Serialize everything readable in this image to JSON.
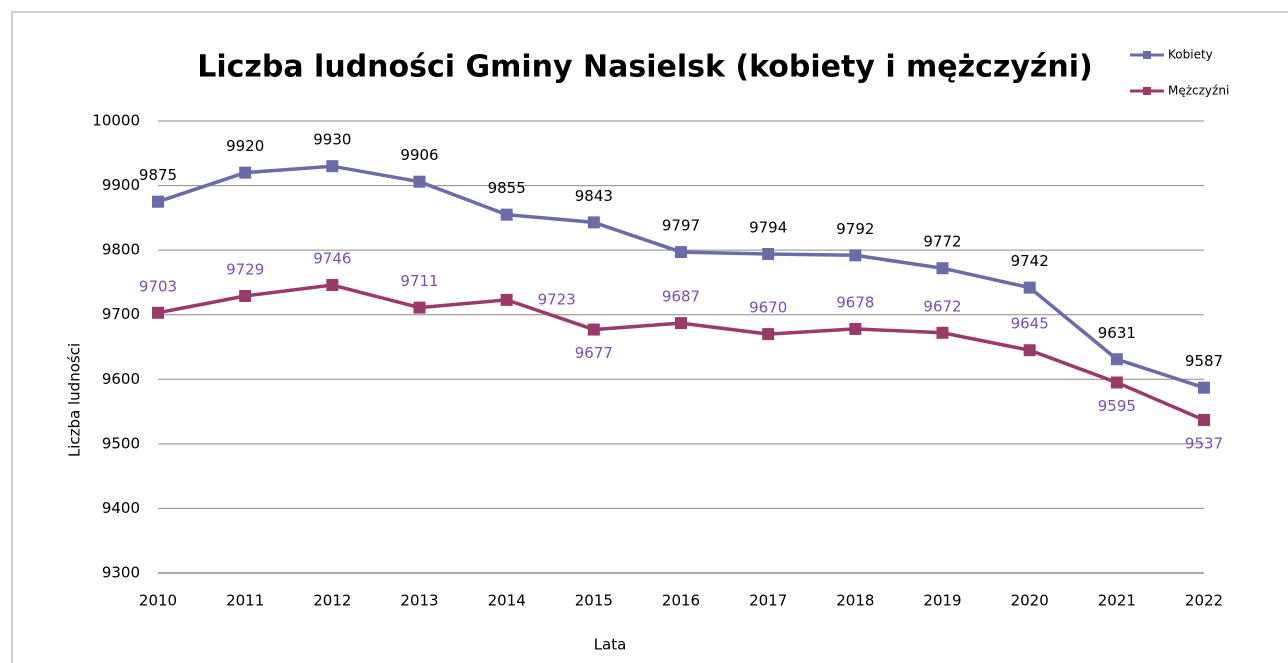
{
  "chart_data": {
    "type": "line",
    "title": "Liczba ludności Gminy Nasielsk (kobiety i mężczyźni)",
    "x_label": "Lata",
    "y_label": "Liczba ludności",
    "categories": [
      "2010",
      "2011",
      "2012",
      "2013",
      "2014",
      "2015",
      "2016",
      "2017",
      "2018",
      "2019",
      "2020",
      "2021",
      "2022"
    ],
    "series": [
      {
        "name": "Kobiety",
        "color": "#6b6ba8",
        "label_color": "#000000",
        "values": [
          9875,
          9920,
          9930,
          9906,
          9855,
          9843,
          9797,
          9794,
          9792,
          9772,
          9742,
          9631,
          9587
        ]
      },
      {
        "name": "Mężczyźni",
        "color": "#9b3a6a",
        "label_color": "#7b4fb5",
        "values": [
          9703,
          9729,
          9746,
          9711,
          9723,
          9677,
          9687,
          9670,
          9678,
          9672,
          9645,
          9595,
          9537
        ]
      }
    ],
    "ylim": [
      9300,
      10000
    ],
    "yticks": [
      9300,
      9400,
      9500,
      9600,
      9700,
      9800,
      9900,
      10000
    ],
    "grid": true,
    "legend": "top-right"
  }
}
